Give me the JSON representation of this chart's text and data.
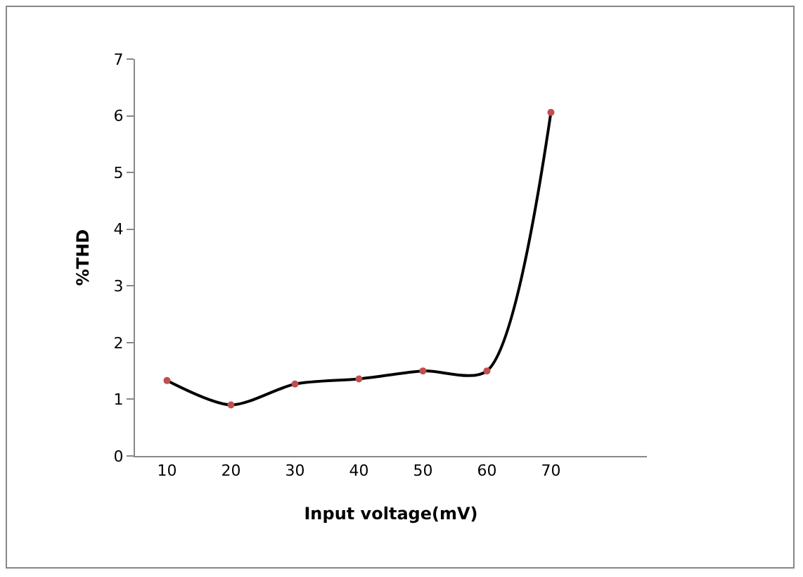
{
  "chart_data": {
    "type": "line",
    "xlabel": "Input voltage(mV)",
    "ylabel": "%THD",
    "categories": [
      "10",
      "20",
      "30",
      "40",
      "50",
      "60",
      "70",
      null
    ],
    "series": [
      {
        "color": "#000000",
        "colors": [
          "#c0504d",
          "#c0504d",
          "#c0504d",
          "#c0504d",
          "#c0504d",
          "#c0504d",
          "#c0504d",
          "#c0504d"
        ],
        "values": [
          1.33,
          0.9,
          1.27,
          1.36,
          1.5,
          1.5,
          6.06,
          null
        ]
      }
    ],
    "ylim": [
      0,
      7
    ],
    "yticks": [
      0,
      1,
      2,
      3,
      4,
      5,
      6,
      7
    ],
    "marker": "circle",
    "line_style": "solid"
  }
}
